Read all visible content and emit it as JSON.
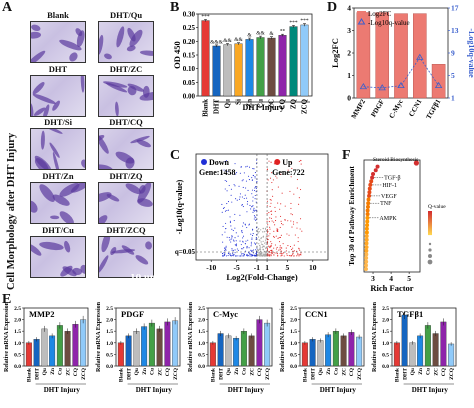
{
  "panels": {
    "A": "A",
    "B": "B",
    "C": "C",
    "D": "D",
    "E": "E",
    "F": "F"
  },
  "panel_a": {
    "ylabel": "Cell Morphology after DHT Injury",
    "scale": "10 μm",
    "images": [
      {
        "label": "Blank"
      },
      {
        "label": "DHT/Qu"
      },
      {
        "label": "DHT"
      },
      {
        "label": "DHT/ZC"
      },
      {
        "label": "DHT/Si"
      },
      {
        "label": "DHT/CQ"
      },
      {
        "label": "DHT/Zn"
      },
      {
        "label": "DHT/ZQ"
      },
      {
        "label": "DHT/Cu"
      },
      {
        "label": "DHT/ZCQ"
      }
    ]
  },
  "colors": {
    "Blank": "#e53935",
    "DHT": "#1565c0",
    "Qu": "#bdbdbd",
    "Si": "#f9a825",
    "Zn": "#1e88e5",
    "Cu": "#43a047",
    "ZC": "#6d4c41",
    "CQ": "#8e24aa",
    "ZQ": "#00897b",
    "ZCQ": "#90caf9",
    "log2fc": "#ec7a72",
    "pval": "#3a5fcd",
    "down": "#1f2fd6",
    "up": "#e02020",
    "ns": "#a8a8a8"
  },
  "chart_data": [
    {
      "id": "B",
      "type": "bar",
      "categories": [
        "Blank",
        "DHT",
        "Qu",
        "Si",
        "Zn",
        "Cu",
        "ZC",
        "CQ",
        "ZQ",
        "ZCQ"
      ],
      "values": [
        0.276,
        0.183,
        0.188,
        0.191,
        0.207,
        0.214,
        0.212,
        0.222,
        0.254,
        0.26
      ],
      "errors": [
        0.004,
        0.004,
        0.004,
        0.004,
        0.005,
        0.005,
        0.005,
        0.004,
        0.004,
        0.005
      ],
      "sig": [
        "***",
        "&&&",
        "&&",
        "&&",
        "&",
        "&&",
        "&",
        "**",
        "***",
        "***"
      ],
      "ylabel": "OD 450",
      "xlabel": "DHT Injury",
      "ylim": [
        0.0,
        0.3
      ],
      "yticks": [
        "0.00",
        "0.05",
        "0.10",
        "0.15",
        "0.20",
        "0.25",
        "0.30"
      ]
    },
    {
      "id": "D",
      "type": "bar",
      "categories": [
        "MMP2",
        "PDGF",
        "C-Myc",
        "CCN1",
        "TGFβ1"
      ],
      "values": [
        3.8,
        3.8,
        3.75,
        3.75,
        1.5
      ],
      "line": {
        "name": "-Log10q-value",
        "values": [
          3.0,
          2.8,
          3.2,
          8.2,
          3.2
        ]
      },
      "legend": [
        "Log2FC",
        "-Log10q-value"
      ],
      "ylabel": "Log2FC",
      "y2label": "-Log10q-value",
      "ylim": [
        0,
        4
      ],
      "yticks": [
        "0",
        "1",
        "2",
        "3",
        "4"
      ],
      "y2lim": [
        1,
        17
      ],
      "y2ticks": [
        "1",
        "5",
        "9",
        "13",
        "17"
      ]
    },
    {
      "id": "C",
      "type": "scatter",
      "xlabel": "Log2(Fold-Change)",
      "ylabel": "-Log10(q-value)",
      "xticks": [
        "-10",
        "-5",
        "-1",
        "1",
        "5",
        "10"
      ],
      "threshold_label": "q=0.05",
      "down": {
        "label": "Down",
        "gene_label": "Gene:1458"
      },
      "up": {
        "label": "Up",
        "gene_label": "Gene:722"
      }
    },
    {
      "id": "F",
      "type": "scatter",
      "xlabel": "Rich Factor",
      "ylabel": "Top 30 of Pathway Enrichment",
      "xticks": [
        "3",
        "4",
        "5"
      ],
      "xlim": [
        2.5,
        5.6
      ],
      "annotations": [
        "Steroid Biosynthesis",
        "TGF-β",
        "HIF-1",
        "VEGF",
        "TNF",
        "AMPK"
      ],
      "legend_title": "Q-value",
      "points_x": [
        5.4,
        3.25,
        3.15,
        3.0,
        2.95,
        2.9,
        2.85,
        2.82,
        2.8,
        2.78,
        2.75,
        2.73,
        2.72,
        2.7,
        2.7,
        2.69,
        2.68,
        2.67,
        2.66,
        2.66,
        2.65,
        2.65,
        2.64,
        2.64,
        2.63,
        2.63,
        2.62,
        2.62,
        2.61,
        2.61
      ]
    },
    {
      "id": "E",
      "type": "bar",
      "categories": [
        "Blank",
        "DHT",
        "Qu",
        "Zn",
        "Cu",
        "ZC",
        "CQ",
        "ZCQ"
      ],
      "xlabel": "DHT Injury",
      "ylabel": "Relative mRNA Expression",
      "subplots": [
        {
          "title": "MMP2",
          "values": [
            1.0,
            1.15,
            1.6,
            1.3,
            1.75,
            1.5,
            1.8,
            2.0
          ],
          "ylim": [
            0,
            2.5
          ]
        },
        {
          "title": "PDGF",
          "values": [
            1.0,
            1.3,
            1.5,
            1.7,
            1.85,
            1.6,
            1.9,
            1.95
          ],
          "ylim": [
            0,
            2.5
          ]
        },
        {
          "title": "C-Myc",
          "values": [
            1.0,
            1.4,
            1.3,
            1.2,
            1.5,
            1.3,
            2.0,
            1.85
          ],
          "ylim": [
            0,
            2.5
          ]
        },
        {
          "title": "CCN1",
          "values": [
            1.0,
            1.15,
            1.1,
            1.35,
            1.5,
            1.3,
            1.45,
            1.25
          ],
          "ylim": [
            0,
            2.5
          ]
        },
        {
          "title": "TGFβ1",
          "values": [
            1.0,
            2.2,
            1.0,
            1.3,
            1.75,
            1.4,
            1.9,
            0.95
          ],
          "ylim": [
            0,
            2.5
          ]
        }
      ],
      "yticks": [
        "0.0",
        "0.5",
        "1.0",
        "1.5",
        "2.0",
        "2.5"
      ]
    }
  ]
}
